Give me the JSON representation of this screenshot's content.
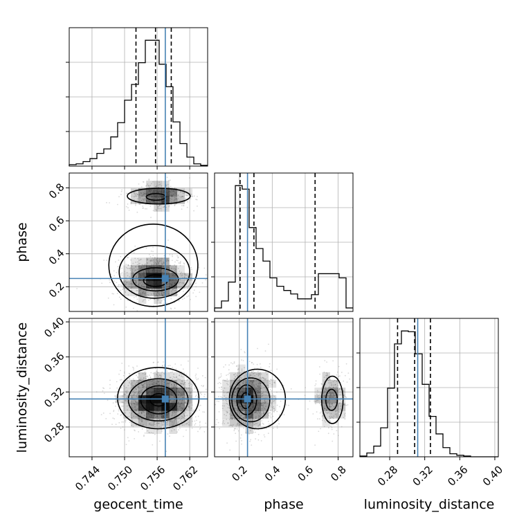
{
  "chart_data": {
    "type": "corner",
    "parameters": [
      "geocent_time",
      "phase",
      "luminosity_distance"
    ],
    "truths": {
      "geocent_time": 0.7575,
      "phase": 0.25,
      "luminosity_distance": 0.312
    },
    "ranges": {
      "geocent_time": [
        0.7398,
        0.7653
      ],
      "phase": [
        0.05,
        0.89
      ],
      "luminosity_distance": [
        0.246,
        0.404
      ]
    },
    "ticks": {
      "geocent_time": {
        "values": [
          0.744,
          0.75,
          0.756,
          0.762
        ],
        "labels": [
          "0.744",
          "0.750",
          "0.756",
          "0.762"
        ]
      },
      "phase": {
        "values": [
          0.2,
          0.4,
          0.6,
          0.8
        ],
        "labels": [
          "0.2",
          "0.4",
          "0.6",
          "0.8"
        ]
      },
      "luminosity_distance": {
        "values": [
          0.28,
          0.32,
          0.36,
          0.4
        ],
        "labels": [
          "0.28",
          "0.32",
          "0.36",
          "0.40"
        ]
      }
    },
    "quantiles": {
      "geocent_time": [
        0.7521,
        0.7557,
        0.7586
      ],
      "phase": [
        0.205,
        0.289,
        0.66
      ],
      "luminosity_distance": [
        0.289,
        0.3085,
        0.3265
      ]
    },
    "histograms": {
      "geocent_time": {
        "edges": [
          0.7398,
          0.74108,
          0.74235,
          0.74362,
          0.7449,
          0.74617,
          0.74745,
          0.74872,
          0.75,
          0.75128,
          0.75255,
          0.75382,
          0.7551,
          0.75637,
          0.75765,
          0.75892,
          0.7602,
          0.76148,
          0.76275,
          0.76402,
          0.7653
        ],
        "counts": [
          2,
          3,
          6,
          10,
          17,
          23,
          39,
          58,
          88,
          109,
          138,
          168,
          168,
          136,
          106,
          59,
          30,
          12,
          3,
          1
        ]
      },
      "phase": {
        "edges": [
          0.05,
          0.092,
          0.134,
          0.176,
          0.218,
          0.26,
          0.302,
          0.344,
          0.386,
          0.428,
          0.47,
          0.512,
          0.554,
          0.596,
          0.638,
          0.68,
          0.722,
          0.764,
          0.806,
          0.848,
          0.89
        ],
        "counts": [
          5,
          15,
          42,
          180,
          175,
          120,
          90,
          72,
          48,
          36,
          30,
          25,
          18,
          18,
          24,
          54,
          54,
          54,
          48,
          5
        ]
      },
      "luminosity_distance": {
        "edges": [
          0.246,
          0.2539,
          0.2618,
          0.2697,
          0.2776,
          0.2855,
          0.2934,
          0.3013,
          0.3092,
          0.3171,
          0.325,
          0.3329,
          0.3408,
          0.3487,
          0.3566,
          0.3645,
          0.3724,
          0.3803,
          0.3882,
          0.3961,
          0.404
        ],
        "counts": [
          1,
          5,
          14,
          38,
          90,
          148,
          165,
          164,
          135,
          95,
          53,
          30,
          12,
          4,
          2,
          1,
          0,
          0,
          0,
          0
        ]
      }
    },
    "blobs": {
      "phase_vs_geocent_time": [
        {
          "cx": 0.7557,
          "cy": 0.25,
          "sx": 0.0035,
          "sy": 0.07,
          "n": 1700
        },
        {
          "cx": 0.7563,
          "cy": 0.75,
          "sx": 0.003,
          "sy": 0.04,
          "n": 800
        }
      ],
      "luminosity_distance_vs_geocent_time": [
        {
          "cx": 0.7563,
          "cy": 0.31,
          "sx": 0.0036,
          "sy": 0.017,
          "n": 2800
        }
      ],
      "luminosity_distance_vs_phase": [
        {
          "cx": 0.25,
          "cy": 0.311,
          "sx": 0.085,
          "sy": 0.018,
          "n": 2100
        },
        {
          "cx": 0.75,
          "cy": 0.311,
          "sx": 0.05,
          "sy": 0.016,
          "n": 700
        }
      ]
    },
    "contours": {
      "phase_vs_geocent_time": [
        {
          "level": 1,
          "cx": 0.7557,
          "cy": 0.237,
          "rx": 0.0022,
          "ry": 0.035
        },
        {
          "level": 2,
          "cx": 0.7557,
          "cy": 0.245,
          "rx": 0.0042,
          "ry": 0.07
        },
        {
          "level": 3,
          "cx": 0.7555,
          "cy": 0.29,
          "rx": 0.0065,
          "ry": 0.16
        },
        {
          "level": 4,
          "cx": 0.7553,
          "cy": 0.33,
          "rx": 0.0082,
          "ry": 0.25
        },
        {
          "level": 1,
          "cx": 0.7558,
          "cy": 0.745,
          "rx": 0.0018,
          "ry": 0.02
        },
        {
          "level": 2,
          "cx": 0.7563,
          "cy": 0.75,
          "rx": 0.0058,
          "ry": 0.048
        }
      ],
      "luminosity_distance_vs_geocent_time": [
        {
          "level": 1,
          "cx": 0.7563,
          "cy": 0.311,
          "rx": 0.0016,
          "ry": 0.007
        },
        {
          "level": 2,
          "cx": 0.7563,
          "cy": 0.311,
          "rx": 0.0033,
          "ry": 0.016
        },
        {
          "level": 3,
          "cx": 0.7562,
          "cy": 0.311,
          "rx": 0.0055,
          "ry": 0.024
        },
        {
          "level": 4,
          "cx": 0.7562,
          "cy": 0.313,
          "rx": 0.0075,
          "ry": 0.035
        }
      ],
      "luminosity_distance_vs_phase": [
        {
          "level": 1,
          "cx": 0.24,
          "cy": 0.31,
          "rx": 0.03,
          "ry": 0.009
        },
        {
          "level": 2,
          "cx": 0.245,
          "cy": 0.311,
          "rx": 0.06,
          "ry": 0.017
        },
        {
          "level": 3,
          "cx": 0.27,
          "cy": 0.311,
          "rx": 0.115,
          "ry": 0.025
        },
        {
          "level": 4,
          "cx": 0.31,
          "cy": 0.312,
          "rx": 0.17,
          "ry": 0.034
        },
        {
          "level": 1,
          "cx": 0.76,
          "cy": 0.311,
          "rx": 0.035,
          "ry": 0.012
        },
        {
          "level": 2,
          "cx": 0.765,
          "cy": 0.311,
          "rx": 0.065,
          "ry": 0.027
        }
      ]
    },
    "grid": true,
    "colors": {
      "truth": "#4682b4",
      "hist": "#000000",
      "quantile": "#000000",
      "samples": "#909090",
      "grid": "#b0b0b0",
      "density": "#000000"
    }
  }
}
